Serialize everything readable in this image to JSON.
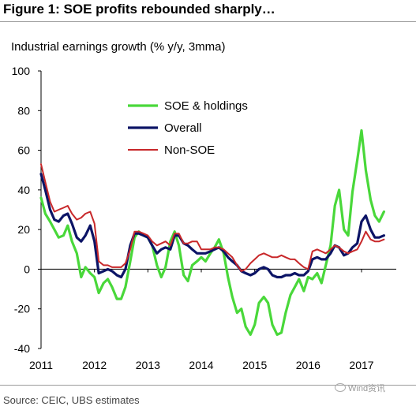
{
  "figure": {
    "title": "Figure 1: SOE profits rebounded sharply…",
    "source": "Source:  CEIC, UBS estimates",
    "watermark": "Wind资讯"
  },
  "chart_data": {
    "type": "line",
    "title": "Figure 1: SOE profits rebounded sharply…",
    "subtitle": "Industrial earnings growth (% y/y, 3mma)",
    "xlabel": "",
    "ylabel": "",
    "ylim": [
      -40,
      100
    ],
    "yticks": [
      -40,
      -20,
      0,
      20,
      40,
      60,
      80,
      100
    ],
    "xlim": [
      2011.0,
      2017.65
    ],
    "xticks": [
      "2011",
      "2012",
      "2013",
      "2014",
      "2015",
      "2016",
      "2017"
    ],
    "grid": false,
    "legend_position": "top-center",
    "series": [
      {
        "name": "SOE & holdings",
        "color": "#49d83a",
        "points": [
          [
            2011.0,
            36
          ],
          [
            2011.08,
            28
          ],
          [
            2011.17,
            24
          ],
          [
            2011.25,
            20
          ],
          [
            2011.33,
            16
          ],
          [
            2011.42,
            17
          ],
          [
            2011.5,
            22
          ],
          [
            2011.58,
            14
          ],
          [
            2011.67,
            8
          ],
          [
            2011.75,
            -4
          ],
          [
            2011.83,
            1
          ],
          [
            2011.92,
            -2
          ],
          [
            2012.0,
            -4
          ],
          [
            2012.08,
            -12
          ],
          [
            2012.17,
            -7
          ],
          [
            2012.25,
            -5
          ],
          [
            2012.33,
            -9
          ],
          [
            2012.42,
            -15
          ],
          [
            2012.5,
            -15
          ],
          [
            2012.58,
            -9
          ],
          [
            2012.67,
            4
          ],
          [
            2012.75,
            16
          ],
          [
            2012.83,
            19
          ],
          [
            2012.92,
            17
          ],
          [
            2013.0,
            16
          ],
          [
            2013.08,
            12
          ],
          [
            2013.17,
            2
          ],
          [
            2013.25,
            -4
          ],
          [
            2013.33,
            1
          ],
          [
            2013.42,
            14
          ],
          [
            2013.5,
            19
          ],
          [
            2013.58,
            12
          ],
          [
            2013.67,
            -3
          ],
          [
            2013.75,
            -6
          ],
          [
            2013.83,
            2
          ],
          [
            2013.92,
            4
          ],
          [
            2014.0,
            6
          ],
          [
            2014.08,
            4
          ],
          [
            2014.17,
            8
          ],
          [
            2014.25,
            11
          ],
          [
            2014.33,
            15
          ],
          [
            2014.42,
            8
          ],
          [
            2014.5,
            -4
          ],
          [
            2014.58,
            -14
          ],
          [
            2014.67,
            -22
          ],
          [
            2014.75,
            -20
          ],
          [
            2014.83,
            -29
          ],
          [
            2014.92,
            -33
          ],
          [
            2015.0,
            -28
          ],
          [
            2015.08,
            -17
          ],
          [
            2015.17,
            -14
          ],
          [
            2015.25,
            -17
          ],
          [
            2015.33,
            -28
          ],
          [
            2015.42,
            -33
          ],
          [
            2015.5,
            -32
          ],
          [
            2015.58,
            -22
          ],
          [
            2015.67,
            -13
          ],
          [
            2015.75,
            -9
          ],
          [
            2015.83,
            -5
          ],
          [
            2015.92,
            -11
          ],
          [
            2016.0,
            -4
          ],
          [
            2016.08,
            -5
          ],
          [
            2016.17,
            -2
          ],
          [
            2016.25,
            -7
          ],
          [
            2016.33,
            2
          ],
          [
            2016.42,
            12
          ],
          [
            2016.5,
            32
          ],
          [
            2016.58,
            40
          ],
          [
            2016.67,
            20
          ],
          [
            2016.75,
            17
          ],
          [
            2016.83,
            39
          ],
          [
            2016.92,
            55
          ],
          [
            2017.0,
            70
          ],
          [
            2017.08,
            50
          ],
          [
            2017.17,
            35
          ],
          [
            2017.25,
            27
          ],
          [
            2017.33,
            24
          ],
          [
            2017.42,
            29
          ]
        ]
      },
      {
        "name": "Overall",
        "color": "#0c1466",
        "points": [
          [
            2011.0,
            48
          ],
          [
            2011.08,
            40
          ],
          [
            2011.17,
            30
          ],
          [
            2011.25,
            25
          ],
          [
            2011.33,
            24
          ],
          [
            2011.42,
            27
          ],
          [
            2011.5,
            28
          ],
          [
            2011.58,
            23
          ],
          [
            2011.67,
            16
          ],
          [
            2011.75,
            14
          ],
          [
            2011.83,
            17
          ],
          [
            2011.92,
            22
          ],
          [
            2012.0,
            14
          ],
          [
            2012.08,
            -2
          ],
          [
            2012.17,
            -1
          ],
          [
            2012.25,
            0
          ],
          [
            2012.33,
            -1
          ],
          [
            2012.42,
            -3
          ],
          [
            2012.5,
            -4
          ],
          [
            2012.58,
            0
          ],
          [
            2012.67,
            12
          ],
          [
            2012.75,
            18
          ],
          [
            2012.83,
            18
          ],
          [
            2012.92,
            17
          ],
          [
            2013.0,
            16
          ],
          [
            2013.08,
            12
          ],
          [
            2013.17,
            8
          ],
          [
            2013.25,
            10
          ],
          [
            2013.33,
            11
          ],
          [
            2013.42,
            10
          ],
          [
            2013.5,
            17
          ],
          [
            2013.58,
            17
          ],
          [
            2013.67,
            13
          ],
          [
            2013.75,
            12
          ],
          [
            2013.83,
            10
          ],
          [
            2013.92,
            8
          ],
          [
            2014.0,
            8
          ],
          [
            2014.08,
            8
          ],
          [
            2014.17,
            9
          ],
          [
            2014.25,
            10
          ],
          [
            2014.33,
            11
          ],
          [
            2014.42,
            9
          ],
          [
            2014.5,
            6
          ],
          [
            2014.58,
            4
          ],
          [
            2014.67,
            2
          ],
          [
            2014.75,
            -1
          ],
          [
            2014.83,
            -2
          ],
          [
            2014.92,
            -3
          ],
          [
            2015.0,
            -2
          ],
          [
            2015.08,
            0
          ],
          [
            2015.17,
            1
          ],
          [
            2015.25,
            0
          ],
          [
            2015.33,
            -3
          ],
          [
            2015.42,
            -4
          ],
          [
            2015.5,
            -4
          ],
          [
            2015.58,
            -3
          ],
          [
            2015.67,
            -3
          ],
          [
            2015.75,
            -2
          ],
          [
            2015.83,
            -3
          ],
          [
            2015.92,
            -3
          ],
          [
            2016.0,
            -1
          ],
          [
            2016.08,
            5
          ],
          [
            2016.17,
            6
          ],
          [
            2016.25,
            5
          ],
          [
            2016.33,
            5
          ],
          [
            2016.42,
            8
          ],
          [
            2016.5,
            12
          ],
          [
            2016.58,
            11
          ],
          [
            2016.67,
            7
          ],
          [
            2016.75,
            8
          ],
          [
            2016.83,
            11
          ],
          [
            2016.92,
            13
          ],
          [
            2017.0,
            24
          ],
          [
            2017.08,
            27
          ],
          [
            2017.17,
            20
          ],
          [
            2017.25,
            16
          ],
          [
            2017.33,
            16
          ],
          [
            2017.42,
            17
          ]
        ]
      },
      {
        "name": "Non-SOE",
        "color": "#c8282a",
        "points": [
          [
            2011.0,
            53
          ],
          [
            2011.08,
            44
          ],
          [
            2011.17,
            34
          ],
          [
            2011.25,
            29
          ],
          [
            2011.33,
            30
          ],
          [
            2011.42,
            31
          ],
          [
            2011.5,
            32
          ],
          [
            2011.58,
            28
          ],
          [
            2011.67,
            25
          ],
          [
            2011.75,
            26
          ],
          [
            2011.83,
            28
          ],
          [
            2011.92,
            29
          ],
          [
            2012.0,
            23
          ],
          [
            2012.08,
            4
          ],
          [
            2012.17,
            2
          ],
          [
            2012.25,
            2
          ],
          [
            2012.33,
            1
          ],
          [
            2012.42,
            1
          ],
          [
            2012.5,
            1
          ],
          [
            2012.58,
            3
          ],
          [
            2012.67,
            10
          ],
          [
            2012.75,
            19
          ],
          [
            2012.83,
            19
          ],
          [
            2012.92,
            18
          ],
          [
            2013.0,
            17
          ],
          [
            2013.08,
            14
          ],
          [
            2013.17,
            12
          ],
          [
            2013.25,
            13
          ],
          [
            2013.33,
            14
          ],
          [
            2013.42,
            12
          ],
          [
            2013.5,
            18
          ],
          [
            2013.58,
            18
          ],
          [
            2013.67,
            13
          ],
          [
            2013.75,
            13
          ],
          [
            2013.83,
            14
          ],
          [
            2013.92,
            14
          ],
          [
            2014.0,
            10
          ],
          [
            2014.08,
            10
          ],
          [
            2014.17,
            10
          ],
          [
            2014.25,
            11
          ],
          [
            2014.33,
            11
          ],
          [
            2014.42,
            10
          ],
          [
            2014.5,
            8
          ],
          [
            2014.58,
            6
          ],
          [
            2014.67,
            2
          ],
          [
            2014.75,
            -1
          ],
          [
            2014.83,
            0
          ],
          [
            2014.92,
            3
          ],
          [
            2015.0,
            5
          ],
          [
            2015.08,
            7
          ],
          [
            2015.17,
            8
          ],
          [
            2015.25,
            7
          ],
          [
            2015.33,
            6
          ],
          [
            2015.42,
            6
          ],
          [
            2015.5,
            7
          ],
          [
            2015.58,
            6
          ],
          [
            2015.67,
            5
          ],
          [
            2015.75,
            5
          ],
          [
            2015.83,
            3
          ],
          [
            2015.92,
            1
          ],
          [
            2016.0,
            0
          ],
          [
            2016.08,
            9
          ],
          [
            2016.17,
            10
          ],
          [
            2016.25,
            9
          ],
          [
            2016.33,
            8
          ],
          [
            2016.42,
            10
          ],
          [
            2016.5,
            12
          ],
          [
            2016.58,
            11
          ],
          [
            2016.67,
            9
          ],
          [
            2016.75,
            8
          ],
          [
            2016.83,
            9
          ],
          [
            2016.92,
            10
          ],
          [
            2017.0,
            14
          ],
          [
            2017.08,
            19
          ],
          [
            2017.17,
            15
          ],
          [
            2017.25,
            14
          ],
          [
            2017.33,
            14
          ],
          [
            2017.42,
            15
          ]
        ]
      }
    ]
  }
}
